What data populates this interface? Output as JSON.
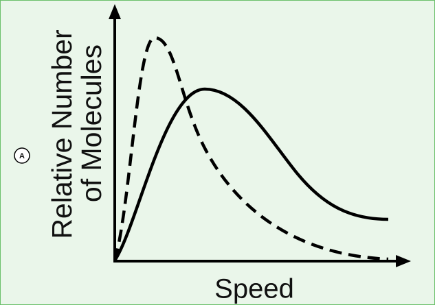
{
  "y_axis_label": {
    "lines": [
      "Relative Number",
      "of Molecules"
    ]
  },
  "x_axis_label": "Speed",
  "marker": "A"
}
